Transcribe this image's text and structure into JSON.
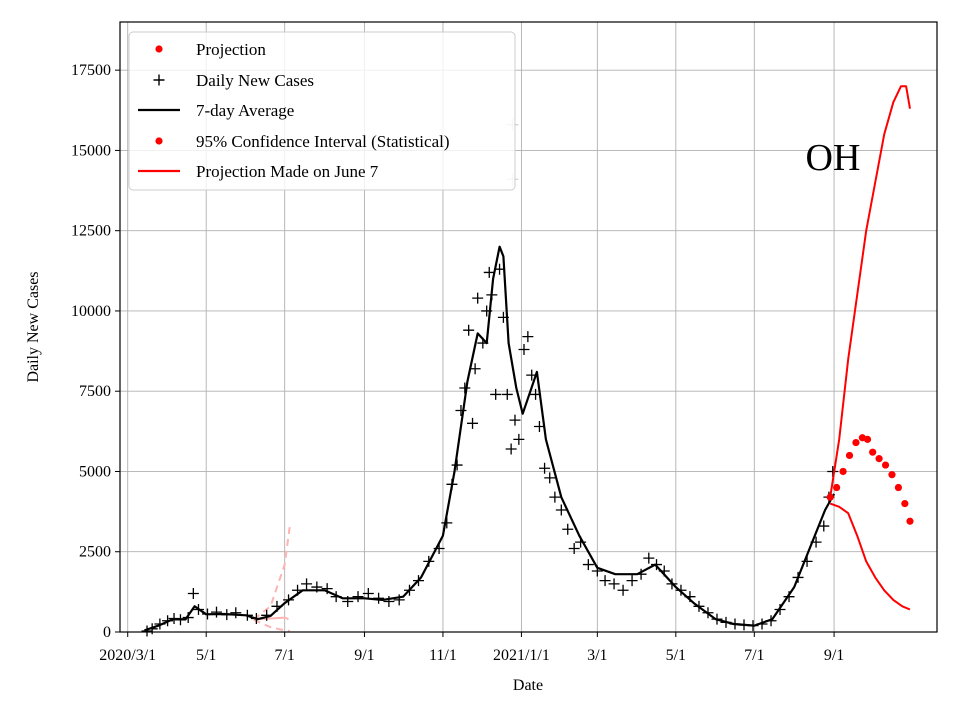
{
  "chart_data": {
    "type": "line",
    "title": "",
    "xlabel": "Date",
    "ylabel": "Daily New Cases",
    "region_label": "OH",
    "x_axis_type": "date",
    "xlim": [
      "2020-02-24",
      "2021-11-20"
    ],
    "ylim": [
      0,
      19000
    ],
    "x_ticks": [
      {
        "date": "2020-03-01",
        "label": "2020/3/1"
      },
      {
        "date": "2020-05-01",
        "label": "5/1"
      },
      {
        "date": "2020-07-01",
        "label": "7/1"
      },
      {
        "date": "2020-09-01",
        "label": "9/1"
      },
      {
        "date": "2020-11-01",
        "label": "11/1"
      },
      {
        "date": "2021-01-01",
        "label": "2021/1/1"
      },
      {
        "date": "2021-03-01",
        "label": "3/1"
      },
      {
        "date": "2021-05-01",
        "label": "5/1"
      },
      {
        "date": "2021-07-01",
        "label": "7/1"
      },
      {
        "date": "2021-09-01",
        "label": "9/1"
      }
    ],
    "y_ticks": [
      0,
      2500,
      5000,
      7500,
      10000,
      12500,
      15000,
      17500
    ],
    "grid": true,
    "legend_position": "top-left",
    "legend": [
      {
        "label": "Projection",
        "marker": "dot",
        "color": "#ff0000"
      },
      {
        "label": "Daily New Cases",
        "marker": "plus",
        "color": "#000000"
      },
      {
        "label": "7-day Average",
        "marker": "line",
        "color": "#000000"
      },
      {
        "label": "95% Confidence Interval (Statistical)",
        "marker": "dot",
        "color": "#ff0000"
      },
      {
        "label": "Projection Made on June 7",
        "marker": "line",
        "color": "#ff0000"
      }
    ],
    "series": [
      {
        "name": "7-day Average",
        "style": "line",
        "color": "#000000",
        "points": [
          [
            "2020-03-14",
            50
          ],
          [
            "2020-03-25",
            200
          ],
          [
            "2020-04-05",
            400
          ],
          [
            "2020-04-15",
            400
          ],
          [
            "2020-04-22",
            800
          ],
          [
            "2020-05-01",
            550
          ],
          [
            "2020-05-15",
            560
          ],
          [
            "2020-06-01",
            520
          ],
          [
            "2020-06-10",
            400
          ],
          [
            "2020-06-20",
            500
          ],
          [
            "2020-07-01",
            900
          ],
          [
            "2020-07-15",
            1300
          ],
          [
            "2020-08-01",
            1300
          ],
          [
            "2020-08-15",
            1050
          ],
          [
            "2020-09-01",
            1050
          ],
          [
            "2020-09-15",
            1000
          ],
          [
            "2020-10-01",
            1100
          ],
          [
            "2020-10-15",
            1700
          ],
          [
            "2020-11-01",
            3000
          ],
          [
            "2020-11-10",
            5000
          ],
          [
            "2020-11-20",
            7800
          ],
          [
            "2020-11-28",
            9300
          ],
          [
            "2020-12-05",
            9000
          ],
          [
            "2020-12-10",
            11000
          ],
          [
            "2020-12-15",
            12000
          ],
          [
            "2020-12-18",
            11700
          ],
          [
            "2020-12-22",
            9000
          ],
          [
            "2020-12-28",
            7600
          ],
          [
            "2021-01-02",
            6800
          ],
          [
            "2021-01-08",
            7500
          ],
          [
            "2021-01-13",
            8100
          ],
          [
            "2021-01-20",
            6000
          ],
          [
            "2021-02-01",
            4200
          ],
          [
            "2021-02-15",
            3000
          ],
          [
            "2021-03-01",
            2000
          ],
          [
            "2021-03-15",
            1800
          ],
          [
            "2021-04-01",
            1800
          ],
          [
            "2021-04-15",
            2100
          ],
          [
            "2021-05-01",
            1400
          ],
          [
            "2021-05-15",
            900
          ],
          [
            "2021-06-01",
            400
          ],
          [
            "2021-06-15",
            250
          ],
          [
            "2021-07-01",
            200
          ],
          [
            "2021-07-15",
            400
          ],
          [
            "2021-08-01",
            1400
          ],
          [
            "2021-08-15",
            2800
          ],
          [
            "2021-08-25",
            3800
          ],
          [
            "2021-09-01",
            4300
          ]
        ]
      },
      {
        "name": "Daily New Cases",
        "style": "plus",
        "color": "#000000",
        "points": [
          [
            "2020-03-16",
            30
          ],
          [
            "2020-03-20",
            100
          ],
          [
            "2020-03-26",
            250
          ],
          [
            "2020-04-01",
            350
          ],
          [
            "2020-04-06",
            420
          ],
          [
            "2020-04-11",
            380
          ],
          [
            "2020-04-17",
            450
          ],
          [
            "2020-04-21",
            1200
          ],
          [
            "2020-04-25",
            700
          ],
          [
            "2020-05-02",
            560
          ],
          [
            "2020-05-09",
            620
          ],
          [
            "2020-05-17",
            540
          ],
          [
            "2020-05-24",
            600
          ],
          [
            "2020-06-02",
            520
          ],
          [
            "2020-06-09",
            420
          ],
          [
            "2020-06-17",
            520
          ],
          [
            "2020-06-25",
            800
          ],
          [
            "2020-07-04",
            1000
          ],
          [
            "2020-07-11",
            1300
          ],
          [
            "2020-07-18",
            1500
          ],
          [
            "2020-07-26",
            1400
          ],
          [
            "2020-08-03",
            1350
          ],
          [
            "2020-08-10",
            1100
          ],
          [
            "2020-08-19",
            950
          ],
          [
            "2020-08-27",
            1100
          ],
          [
            "2020-09-04",
            1200
          ],
          [
            "2020-09-12",
            1050
          ],
          [
            "2020-09-20",
            950
          ],
          [
            "2020-09-28",
            1000
          ],
          [
            "2020-10-06",
            1300
          ],
          [
            "2020-10-13",
            1600
          ],
          [
            "2020-10-21",
            2200
          ],
          [
            "2020-10-29",
            2600
          ],
          [
            "2020-11-04",
            3400
          ],
          [
            "2020-11-08",
            4600
          ],
          [
            "2020-11-12",
            5200
          ],
          [
            "2020-11-15",
            6900
          ],
          [
            "2020-11-18",
            7600
          ],
          [
            "2020-11-21",
            9400
          ],
          [
            "2020-11-24",
            6500
          ],
          [
            "2020-11-26",
            8200
          ],
          [
            "2020-11-28",
            10400
          ],
          [
            "2020-12-02",
            9000
          ],
          [
            "2020-12-05",
            10000
          ],
          [
            "2020-12-07",
            11200
          ],
          [
            "2020-12-09",
            10500
          ],
          [
            "2020-12-12",
            7400
          ],
          [
            "2020-12-15",
            11300
          ],
          [
            "2020-12-18",
            9800
          ],
          [
            "2020-12-21",
            7400
          ],
          [
            "2020-12-24",
            5700
          ],
          [
            "2020-12-27",
            6600
          ],
          [
            "2020-12-30",
            6000
          ],
          [
            "2021-01-03",
            8800
          ],
          [
            "2021-01-06",
            9200
          ],
          [
            "2021-01-09",
            8000
          ],
          [
            "2021-01-12",
            7400
          ],
          [
            "2021-01-15",
            6400
          ],
          [
            "2021-01-19",
            5100
          ],
          [
            "2021-01-23",
            4800
          ],
          [
            "2021-01-27",
            4200
          ],
          [
            "2021-02-01",
            3800
          ],
          [
            "2021-02-06",
            3200
          ],
          [
            "2021-02-11",
            2600
          ],
          [
            "2021-02-16",
            2800
          ],
          [
            "2021-02-22",
            2100
          ],
          [
            "2021-03-01",
            1900
          ],
          [
            "2021-03-07",
            1600
          ],
          [
            "2021-03-14",
            1500
          ],
          [
            "2021-03-21",
            1300
          ],
          [
            "2021-03-28",
            1600
          ],
          [
            "2021-04-04",
            1800
          ],
          [
            "2021-04-10",
            2300
          ],
          [
            "2021-04-16",
            2100
          ],
          [
            "2021-04-22",
            1900
          ],
          [
            "2021-04-28",
            1500
          ],
          [
            "2021-05-05",
            1300
          ],
          [
            "2021-05-12",
            1100
          ],
          [
            "2021-05-19",
            800
          ],
          [
            "2021-05-26",
            600
          ],
          [
            "2021-06-02",
            400
          ],
          [
            "2021-06-09",
            300
          ],
          [
            "2021-06-16",
            250
          ],
          [
            "2021-06-23",
            220
          ],
          [
            "2021-06-30",
            200
          ],
          [
            "2021-07-07",
            250
          ],
          [
            "2021-07-14",
            350
          ],
          [
            "2021-07-21",
            700
          ],
          [
            "2021-07-28",
            1100
          ],
          [
            "2021-08-04",
            1700
          ],
          [
            "2021-08-11",
            2200
          ],
          [
            "2021-08-18",
            2800
          ],
          [
            "2021-08-24",
            3300
          ],
          [
            "2021-08-28",
            4200
          ],
          [
            "2021-08-31",
            5000
          ]
        ]
      },
      {
        "name": "Projection",
        "style": "dots",
        "color": "#ff0000",
        "points": [
          [
            "2021-08-29",
            4200
          ],
          [
            "2021-09-03",
            4500
          ],
          [
            "2021-09-08",
            5000
          ],
          [
            "2021-09-13",
            5500
          ],
          [
            "2021-09-18",
            5900
          ],
          [
            "2021-09-23",
            6050
          ],
          [
            "2021-09-27",
            6000
          ],
          [
            "2021-10-01",
            5600
          ],
          [
            "2021-10-06",
            5400
          ],
          [
            "2021-10-11",
            5200
          ],
          [
            "2021-10-16",
            4900
          ],
          [
            "2021-10-21",
            4500
          ],
          [
            "2021-10-26",
            4000
          ],
          [
            "2021-10-30",
            3450
          ]
        ]
      },
      {
        "name": "95% Confidence Interval (Statistical)",
        "style": "lines",
        "color": "#ff0000",
        "bands": [
          {
            "points": [
              [
                "2021-08-29",
                4200
              ],
              [
                "2021-09-05",
                6000
              ],
              [
                "2021-09-12",
                8500
              ],
              [
                "2021-09-19",
                10500
              ],
              [
                "2021-09-26",
                12500
              ],
              [
                "2021-10-03",
                14000
              ],
              [
                "2021-10-10",
                15500
              ],
              [
                "2021-10-17",
                16500
              ],
              [
                "2021-10-23",
                17000
              ],
              [
                "2021-10-27",
                17000
              ],
              [
                "2021-10-30",
                16300
              ]
            ]
          },
          {
            "points": [
              [
                "2021-08-29",
                4000
              ],
              [
                "2021-09-05",
                3900
              ],
              [
                "2021-09-12",
                3700
              ],
              [
                "2021-09-19",
                3000
              ],
              [
                "2021-09-26",
                2200
              ],
              [
                "2021-10-03",
                1700
              ],
              [
                "2021-10-10",
                1300
              ],
              [
                "2021-10-17",
                1000
              ],
              [
                "2021-10-24",
                800
              ],
              [
                "2021-10-30",
                700
              ]
            ]
          }
        ]
      },
      {
        "name": "Projection Made on June 7",
        "style": "faded",
        "color": "#ff0000",
        "bands": [
          {
            "dashed": false,
            "points": [
              [
                "2020-06-07",
                400
              ],
              [
                "2020-06-20",
                420
              ],
              [
                "2020-07-01",
                450
              ],
              [
                "2020-07-04",
                400
              ]
            ]
          },
          {
            "dashed": true,
            "points": [
              [
                "2020-06-07",
                400
              ],
              [
                "2020-06-20",
                800
              ],
              [
                "2020-07-01",
                2100
              ],
              [
                "2020-07-05",
                3300
              ]
            ]
          },
          {
            "dashed": true,
            "points": [
              [
                "2020-06-07",
                380
              ],
              [
                "2020-06-20",
                150
              ],
              [
                "2020-07-01",
                50
              ],
              [
                "2020-07-05",
                30
              ]
            ]
          }
        ]
      }
    ],
    "ghost_markers": [
      {
        "date": "2020-12-25",
        "value": 15800
      },
      {
        "date": "2020-12-25",
        "value": 14100
      }
    ]
  }
}
